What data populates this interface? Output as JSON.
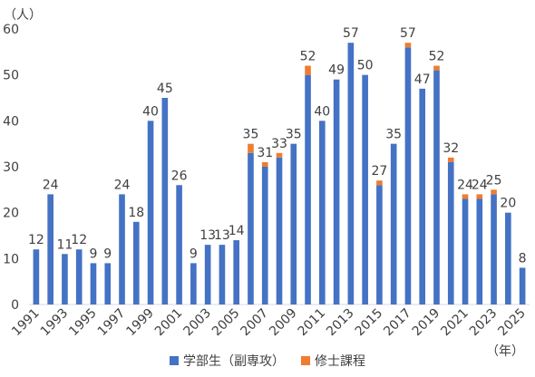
{
  "chart_data": {
    "type": "bar",
    "stacked": true,
    "y_unit_label": "（人）",
    "x_unit_label": "（年）",
    "ylim": [
      0,
      60
    ],
    "yticks": [
      0,
      10,
      20,
      30,
      40,
      50,
      60
    ],
    "grid": false,
    "legend_position": "bottom-center",
    "categories": [
      "1991",
      "1992",
      "1993",
      "1994",
      "1995",
      "1996",
      "1997",
      "1998",
      "1999",
      "2000",
      "2001",
      "2002",
      "2003",
      "2004",
      "2005",
      "2006",
      "2007",
      "2008",
      "2009",
      "2010",
      "2011",
      "2012",
      "2013",
      "2014",
      "2015",
      "2016",
      "2017",
      "2018",
      "2019",
      "2020",
      "2021",
      "2022",
      "2023",
      "2024",
      "2025"
    ],
    "x_tick_labels": [
      "1991",
      "1993",
      "1995",
      "1997",
      "1999",
      "2001",
      "2003",
      "2005",
      "2007",
      "2009",
      "2011",
      "2013",
      "2015",
      "2017",
      "2019",
      "2021",
      "2023",
      "2025"
    ],
    "series": [
      {
        "name": "学部生（副専攻）",
        "color": "#4472c4",
        "values": [
          12,
          24,
          11,
          12,
          9,
          9,
          24,
          18,
          40,
          45,
          26,
          9,
          13,
          13,
          14,
          33,
          30,
          32,
          35,
          50,
          40,
          49,
          57,
          50,
          26,
          35,
          56,
          47,
          51,
          31,
          23,
          23,
          24,
          20,
          8
        ]
      },
      {
        "name": "修士課程",
        "color": "#ed7d31",
        "values": [
          0,
          0,
          0,
          0,
          0,
          0,
          0,
          0,
          0,
          0,
          0,
          0,
          0,
          0,
          0,
          2,
          1,
          1,
          0,
          2,
          0,
          0,
          0,
          0,
          1,
          0,
          1,
          0,
          1,
          1,
          1,
          1,
          1,
          0,
          0
        ]
      }
    ],
    "data_labels": [
      12,
      24,
      11,
      12,
      9,
      9,
      24,
      18,
      40,
      45,
      26,
      9,
      13,
      13,
      14,
      35,
      31,
      33,
      35,
      52,
      40,
      49,
      57,
      50,
      27,
      35,
      57,
      47,
      52,
      32,
      24,
      24,
      25,
      20,
      8
    ]
  }
}
